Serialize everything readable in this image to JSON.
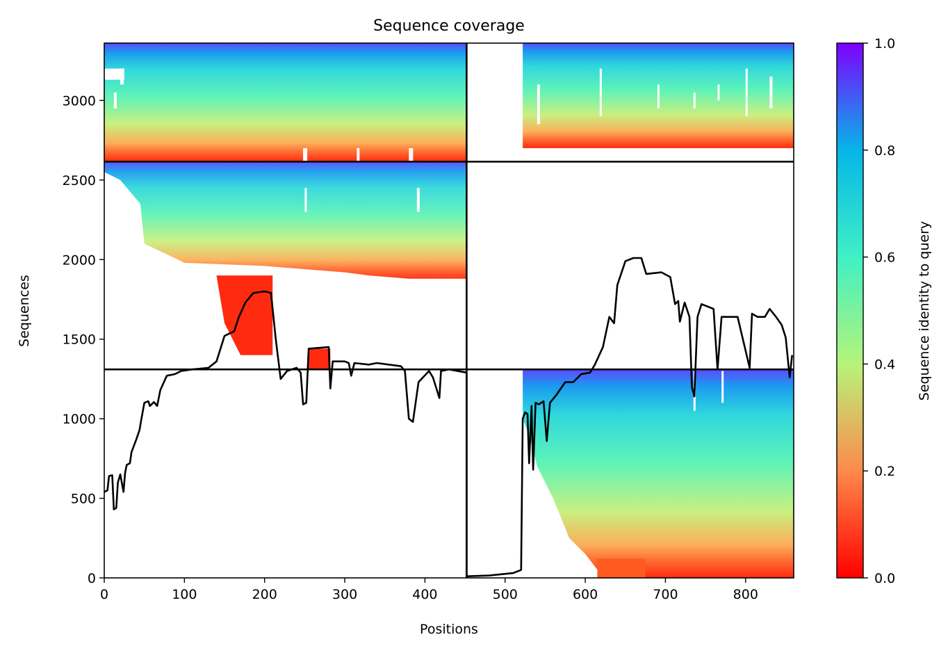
{
  "chart_data": {
    "type": "heatmap",
    "title": "Sequence coverage",
    "xlabel": "Positions",
    "ylabel": "Sequences",
    "xlim": [
      0,
      860
    ],
    "ylim": [
      0,
      3360
    ],
    "xticks": [
      0,
      100,
      200,
      300,
      400,
      500,
      600,
      700,
      800
    ],
    "yticks": [
      0,
      500,
      1000,
      1500,
      2000,
      2500,
      3000
    ],
    "colorbar": {
      "label": "Sequence identity to query",
      "range": [
        0.0,
        1.0
      ],
      "ticks": [
        "0.0",
        "0.2",
        "0.4",
        "0.6",
        "0.8",
        "1.0"
      ],
      "colormap": "rainbow_r",
      "colors": [
        "#ff0000",
        "#ff8040",
        "#c0ff80",
        "#40e0d0",
        "#0080ff",
        "#8000ff"
      ]
    },
    "chain_boundaries": {
      "x": 452,
      "y": [
        1310,
        2615
      ]
    },
    "coverage_line": {
      "color": "#000000",
      "points": [
        [
          0,
          540
        ],
        [
          4,
          550
        ],
        [
          6,
          640
        ],
        [
          10,
          645
        ],
        [
          12,
          430
        ],
        [
          15,
          440
        ],
        [
          17,
          600
        ],
        [
          20,
          650
        ],
        [
          24,
          540
        ],
        [
          26,
          660
        ],
        [
          28,
          710
        ],
        [
          32,
          720
        ],
        [
          34,
          790
        ],
        [
          40,
          870
        ],
        [
          44,
          930
        ],
        [
          46,
          990
        ],
        [
          50,
          1100
        ],
        [
          55,
          1110
        ],
        [
          57,
          1080
        ],
        [
          62,
          1105
        ],
        [
          66,
          1080
        ],
        [
          70,
          1180
        ],
        [
          78,
          1270
        ],
        [
          88,
          1280
        ],
        [
          96,
          1300
        ],
        [
          110,
          1310
        ],
        [
          130,
          1320
        ],
        [
          140,
          1360
        ],
        [
          150,
          1520
        ],
        [
          162,
          1550
        ],
        [
          168,
          1640
        ],
        [
          176,
          1730
        ],
        [
          186,
          1790
        ],
        [
          200,
          1800
        ],
        [
          208,
          1790
        ],
        [
          214,
          1500
        ],
        [
          220,
          1250
        ],
        [
          228,
          1300
        ],
        [
          240,
          1320
        ],
        [
          245,
          1290
        ],
        [
          248,
          1090
        ],
        [
          252,
          1100
        ],
        [
          255,
          1440
        ],
        [
          280,
          1450
        ],
        [
          282,
          1190
        ],
        [
          285,
          1360
        ],
        [
          300,
          1360
        ],
        [
          305,
          1350
        ],
        [
          308,
          1270
        ],
        [
          312,
          1350
        ],
        [
          330,
          1340
        ],
        [
          340,
          1350
        ],
        [
          370,
          1330
        ],
        [
          375,
          1300
        ],
        [
          380,
          1000
        ],
        [
          385,
          980
        ],
        [
          392,
          1230
        ],
        [
          405,
          1300
        ],
        [
          410,
          1260
        ],
        [
          418,
          1130
        ],
        [
          420,
          1300
        ],
        [
          430,
          1310
        ],
        [
          452,
          1290
        ],
        [
          452,
          10
        ],
        [
          480,
          15
        ],
        [
          510,
          30
        ],
        [
          520,
          50
        ],
        [
          522,
          1000
        ],
        [
          525,
          1040
        ],
        [
          528,
          1030
        ],
        [
          530,
          720
        ],
        [
          533,
          1080
        ],
        [
          535,
          680
        ],
        [
          538,
          1100
        ],
        [
          542,
          1090
        ],
        [
          548,
          1110
        ],
        [
          552,
          860
        ],
        [
          556,
          1100
        ],
        [
          564,
          1150
        ],
        [
          575,
          1230
        ],
        [
          585,
          1230
        ],
        [
          595,
          1280
        ],
        [
          606,
          1290
        ],
        [
          612,
          1340
        ],
        [
          622,
          1450
        ],
        [
          630,
          1640
        ],
        [
          636,
          1600
        ],
        [
          640,
          1840
        ],
        [
          650,
          1990
        ],
        [
          660,
          2010
        ],
        [
          670,
          2010
        ],
        [
          676,
          1910
        ],
        [
          695,
          1920
        ],
        [
          706,
          1890
        ],
        [
          712,
          1720
        ],
        [
          716,
          1740
        ],
        [
          718,
          1610
        ],
        [
          724,
          1730
        ],
        [
          730,
          1640
        ],
        [
          733,
          1200
        ],
        [
          736,
          1140
        ],
        [
          740,
          1640
        ],
        [
          745,
          1720
        ],
        [
          760,
          1690
        ],
        [
          765,
          1310
        ],
        [
          770,
          1640
        ],
        [
          790,
          1640
        ],
        [
          805,
          1320
        ],
        [
          808,
          1660
        ],
        [
          815,
          1640
        ],
        [
          824,
          1640
        ],
        [
          830,
          1690
        ],
        [
          838,
          1640
        ],
        [
          845,
          1590
        ],
        [
          850,
          1510
        ],
        [
          855,
          1260
        ],
        [
          858,
          1400
        ]
      ]
    }
  }
}
